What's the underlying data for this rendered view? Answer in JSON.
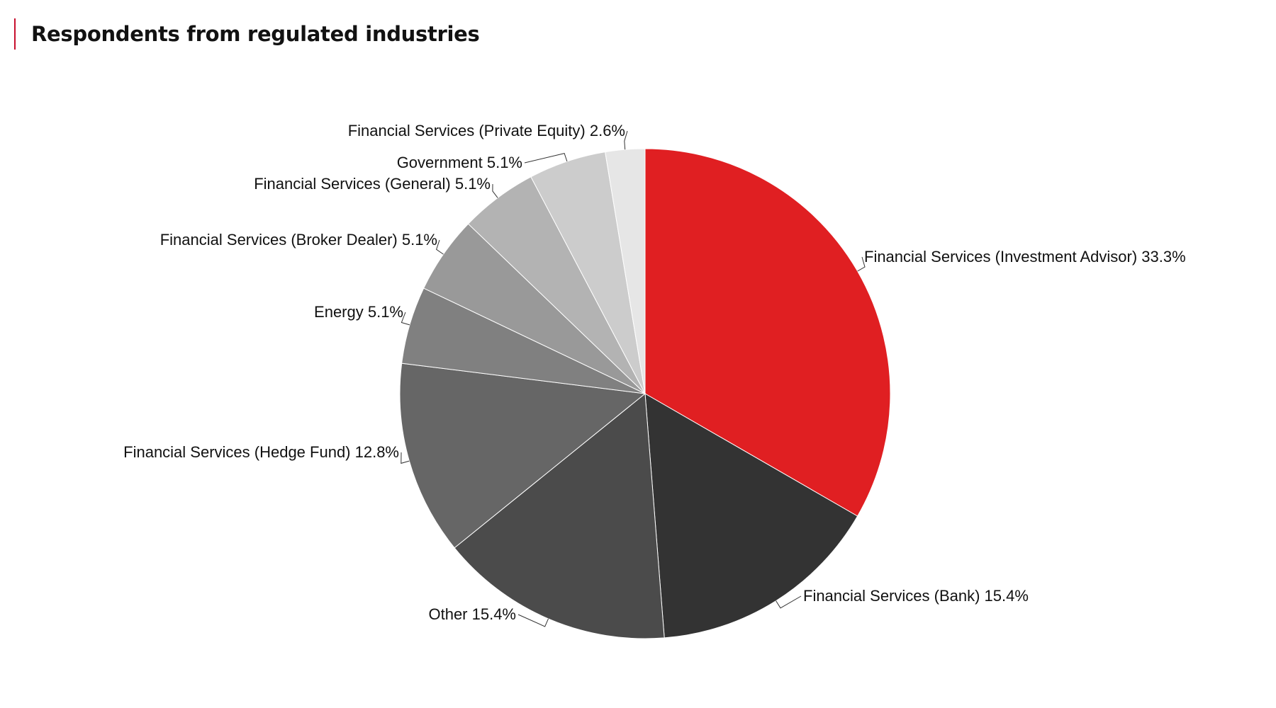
{
  "header": {
    "title": "Respondents from regulated industries"
  },
  "chart_data": {
    "type": "pie",
    "title": "Respondents from regulated industries",
    "start": "12 o'clock",
    "direction": "clockwise",
    "slices": [
      {
        "name": "Financial Services (Investment Advisor)",
        "value": 33.3,
        "label": "Financial Services (Investment Advisor) 33.3%",
        "color": "#e01f22"
      },
      {
        "name": "Financial Services (Bank)",
        "value": 15.4,
        "label": "Financial Services (Bank) 15.4%",
        "color": "#333333"
      },
      {
        "name": "Other",
        "value": 15.4,
        "label": "Other 15.4%",
        "color": "#4b4b4b"
      },
      {
        "name": "Financial Services (Hedge Fund)",
        "value": 12.8,
        "label": "Financial Services (Hedge Fund) 12.8%",
        "color": "#666666"
      },
      {
        "name": "Energy",
        "value": 5.1,
        "label": "Energy 5.1%",
        "color": "#808080"
      },
      {
        "name": "Financial Services (Broker Dealer)",
        "value": 5.1,
        "label": "Financial Services (Broker Dealer) 5.1%",
        "color": "#999999"
      },
      {
        "name": "Financial Services (General)",
        "value": 5.1,
        "label": "Financial Services (General) 5.1%",
        "color": "#b3b3b3"
      },
      {
        "name": "Government",
        "value": 5.1,
        "label": "Government 5.1%",
        "color": "#cccccc"
      },
      {
        "name": "Financial Services (Private Equity)",
        "value": 2.6,
        "label": "Financial Services (Private Equity) 2.6%",
        "color": "#e6e6e6"
      }
    ]
  }
}
